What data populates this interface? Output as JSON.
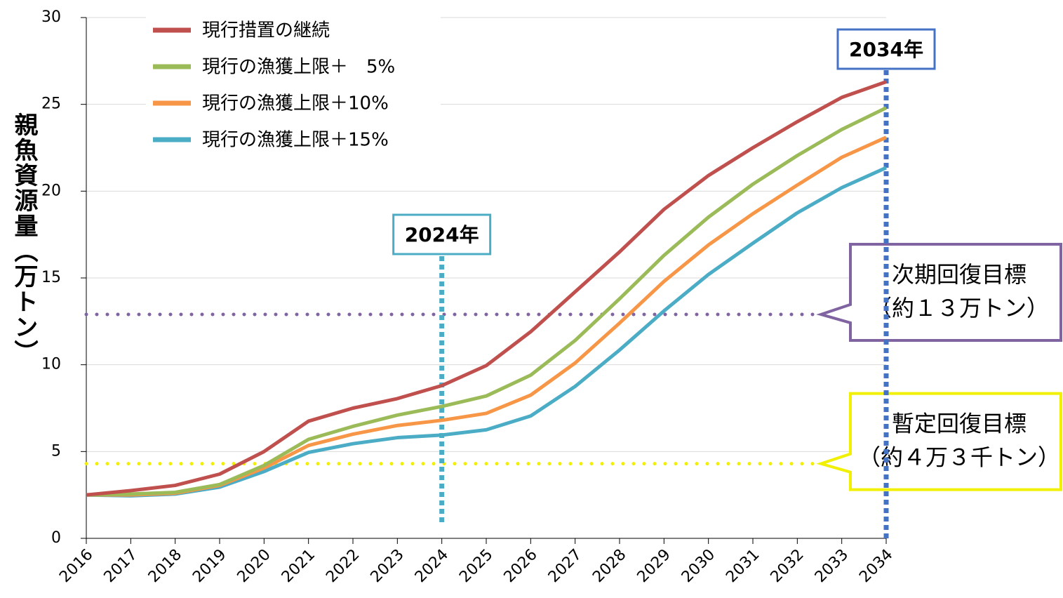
{
  "chart_data": {
    "type": "line",
    "y_label": "親魚資源量（万トン）",
    "categories": [
      "2016",
      "2017",
      "2018",
      "2019",
      "2020",
      "2021",
      "2022",
      "2023",
      "2024",
      "2025",
      "2026",
      "2027",
      "2028",
      "2029",
      "2030",
      "2031",
      "2032",
      "2033",
      "2034"
    ],
    "series": [
      {
        "name": "現行措置の継続",
        "color": "#c0504d",
        "values": [
          2.5,
          2.75,
          3.05,
          3.7,
          5.0,
          6.75,
          7.5,
          8.05,
          8.8,
          9.95,
          11.9,
          14.2,
          16.5,
          18.95,
          20.9,
          22.5,
          24.0,
          25.4,
          26.3
        ]
      },
      {
        "name": "現行の漁獲上限＋　5%",
        "color": "#9bbb59",
        "values": [
          2.5,
          2.55,
          2.65,
          3.1,
          4.2,
          5.7,
          6.45,
          7.1,
          7.6,
          8.2,
          9.4,
          11.4,
          13.8,
          16.3,
          18.5,
          20.4,
          22.05,
          23.55,
          24.8
        ]
      },
      {
        "name": "現行の漁獲上限＋10%",
        "color": "#f79646",
        "values": [
          2.5,
          2.5,
          2.6,
          3.05,
          4.05,
          5.35,
          6.0,
          6.5,
          6.8,
          7.2,
          8.25,
          10.1,
          12.4,
          14.8,
          16.9,
          18.7,
          20.35,
          21.95,
          23.1
        ]
      },
      {
        "name": "現行の漁獲上限＋15%",
        "color": "#4bacc6",
        "values": [
          2.5,
          2.45,
          2.55,
          2.95,
          3.85,
          4.95,
          5.45,
          5.8,
          5.95,
          6.25,
          7.05,
          8.75,
          10.85,
          13.1,
          15.2,
          17.0,
          18.75,
          20.2,
          21.35
        ]
      }
    ],
    "ylim": [
      0,
      30
    ],
    "yticks": [
      0,
      5,
      10,
      15,
      20,
      25,
      30
    ],
    "grid": true,
    "legend": "top-left",
    "hlines": [
      {
        "value": 12.9,
        "color": "#8064a2",
        "label": [
          "次期回復目標",
          "（約１３万トン）"
        ]
      },
      {
        "value": 4.3,
        "color": "#f0f000",
        "label": [
          "暫定回復目標",
          "（約４万３千トン）"
        ]
      }
    ],
    "vlines": [
      {
        "x": "2024",
        "color": "#4bacc6",
        "label": "2024年"
      },
      {
        "x": "2034",
        "color": "#4472c4",
        "label": "2034年"
      }
    ]
  }
}
